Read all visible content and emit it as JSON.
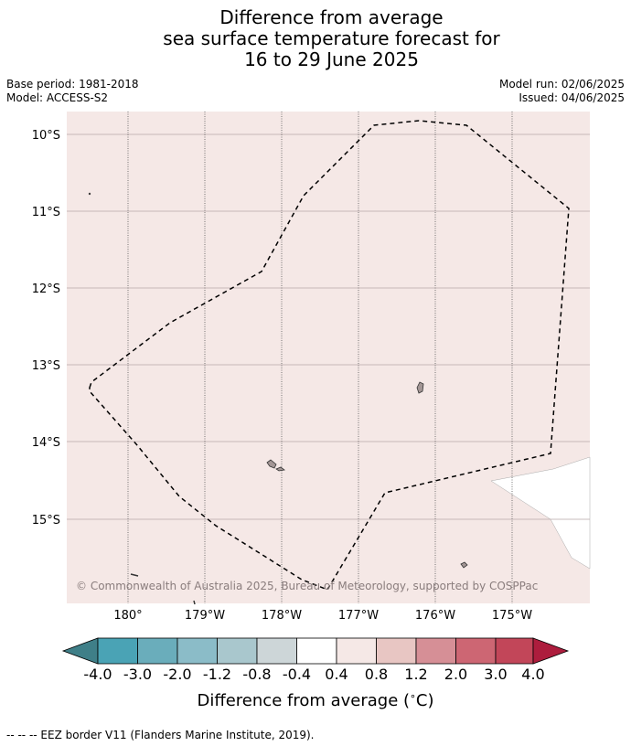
{
  "title": {
    "line1": "Difference from average",
    "line2": "sea surface temperature forecast for",
    "line3": "16 to 29 June 2025"
  },
  "meta": {
    "base_period": "Base period: 1981-2018",
    "model": "Model: ACCESS-S2",
    "model_run": "Model run: 02/06/2025",
    "issued": "Issued: 04/06/2025"
  },
  "map": {
    "lat_labels": [
      "10°S",
      "11°S",
      "12°S",
      "13°S",
      "14°S",
      "15°S"
    ],
    "lon_labels": [
      "180°",
      "179°W",
      "178°W",
      "177°W",
      "176°W",
      "175°W"
    ],
    "copyright": "© Commonwealth of Australia 2025, Bureau of Meteorology, supported by COSPPac",
    "sea_color": "#f5e8e6",
    "land_color": "#ffffff",
    "island_color": "#a39695"
  },
  "colorbar": {
    "ticks": [
      "-4.0",
      "-3.0",
      "-2.0",
      "-1.2",
      "-0.8",
      "-0.4",
      "0.4",
      "0.8",
      "1.2",
      "2.0",
      "3.0",
      "4.0"
    ],
    "colors": [
      "#3f7f88",
      "#4aa3b5",
      "#6aadbb",
      "#8bbcc8",
      "#a9c7cd",
      "#cdd6d8",
      "#ffffff",
      "#f5e8e6",
      "#e8c6c3",
      "#d68f96",
      "#cd6673",
      "#c24659",
      "#ad1d3d"
    ],
    "label": "Difference from average ($^\\circ$C)"
  },
  "footer": {
    "legend": "--  --  -- EEZ border V11 (Flanders Marine Institute, 2019)."
  }
}
